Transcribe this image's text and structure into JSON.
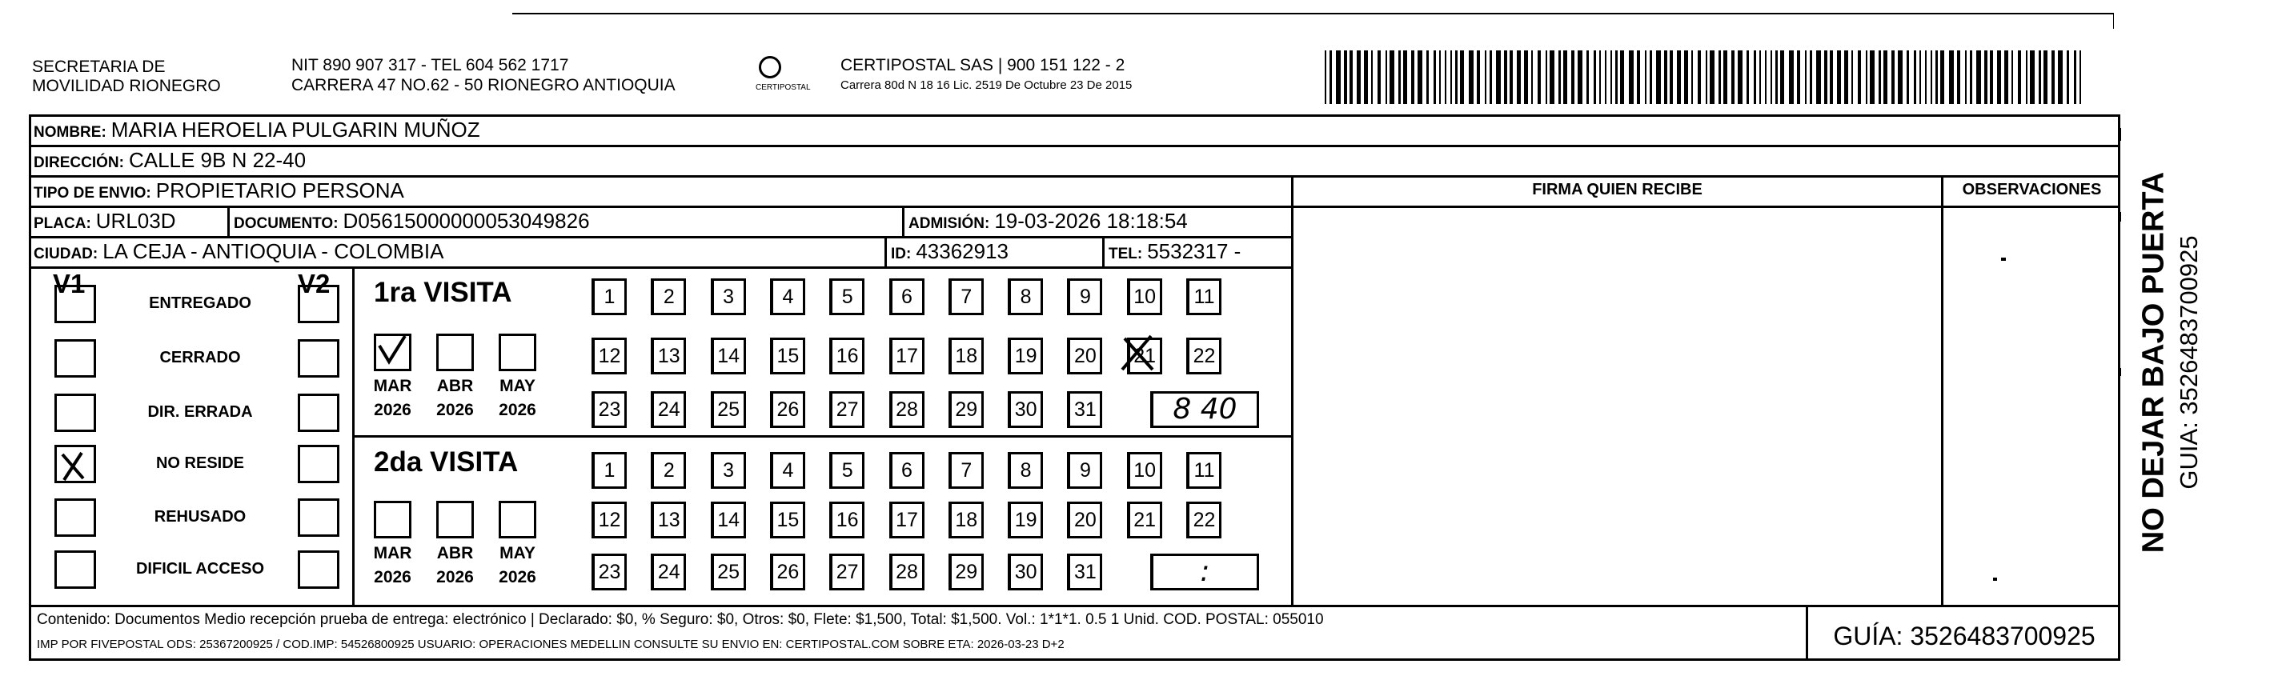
{
  "header": {
    "org_line1": "SECRETARIA DE",
    "org_line2": "MOVILIDAD RIONEGRO",
    "nit": "NIT 890 907 317 - TEL 604 562 1717",
    "address": "CARRERA 47 NO.62 - 50 RIONEGRO ANTIOQUIA",
    "logo": "CERTIPOSTAL",
    "company": "CERTIPOSTAL SAS | 900 151 122 - 2",
    "license": "Carrera 80d N 18 16 Lic. 2519 De Octubre 23 De 2015"
  },
  "fields": {
    "nombre": {
      "label": "NOMBRE:",
      "value": "MARIA HEROELIA PULGARIN MUÑOZ"
    },
    "direccion": {
      "label": "DIRECCIÓN:",
      "value": "CALLE 9B N 22-40"
    },
    "tipo": {
      "label": "TIPO DE ENVIO:",
      "value": "PROPIETARIO PERSONA"
    },
    "placa": {
      "label": "PLACA:",
      "value": "URL03D"
    },
    "documento": {
      "label": "DOCUMENTO:",
      "value": "D05615000000053049826"
    },
    "admision": {
      "label": "ADMISIÓN:",
      "value": "19-03-2026 18:18:54"
    },
    "ciudad": {
      "label": "CIUDAD:",
      "value": "LA CEJA - ANTIOQUIA - COLOMBIA"
    },
    "id": {
      "label": "ID:",
      "value": "43362913"
    },
    "tel": {
      "label": "TEL:",
      "value": "5532317 -"
    }
  },
  "columns": {
    "firma": "FIRMA QUIEN RECIBE",
    "observaciones": "OBSERVACIONES"
  },
  "status": {
    "v1": "V1",
    "v2": "V2",
    "options": [
      "ENTREGADO",
      "CERRADO",
      "DIR. ERRADA",
      "NO RESIDE",
      "REHUSADO",
      "DIFICIL ACCESO"
    ]
  },
  "visits": [
    {
      "title": "1ra VISITA",
      "months": [
        "MAR",
        "ABR",
        "MAY"
      ],
      "years": [
        "2026",
        "2026",
        "2026"
      ],
      "days": [
        1,
        2,
        3,
        4,
        5,
        6,
        7,
        8,
        9,
        10,
        11,
        12,
        13,
        14,
        15,
        16,
        17,
        18,
        19,
        20,
        21,
        22,
        23,
        24,
        25,
        26,
        27,
        28,
        29,
        30,
        31
      ],
      "time": "8 40"
    },
    {
      "title": "2da VISITA",
      "months": [
        "MAR",
        "ABR",
        "MAY"
      ],
      "years": [
        "2026",
        "2026",
        "2026"
      ],
      "days": [
        1,
        2,
        3,
        4,
        5,
        6,
        7,
        8,
        9,
        10,
        11,
        12,
        13,
        14,
        15,
        16,
        17,
        18,
        19,
        20,
        21,
        22,
        23,
        24,
        25,
        26,
        27,
        28,
        29,
        30,
        31
      ],
      "time": ":"
    }
  ],
  "footer": {
    "contenido": "Contenido: Documentos Medio recepción prueba de entrega: electrónico | Declarado: $0, % Seguro: $0, Otros: $0, Flete: $1,500, Total: $1,500. Vol.: 1*1*1. 0.5  1 Unid. COD. POSTAL: 055010",
    "imp": "IMP POR FIVEPOSTAL ODS: 25367200925 / COD.IMP: 54526800925 USUARIO: OPERACIONES MEDELLIN CONSULTE SU ENVIO EN: CERTIPOSTAL.COM SOBRE ETA: 2026-03-23 D+2",
    "guia": "GUÍA: 3526483700925"
  },
  "side": {
    "warning": "NO DEJAR BAJO PUERTA",
    "guia": "GUIA: 3526483700925"
  }
}
